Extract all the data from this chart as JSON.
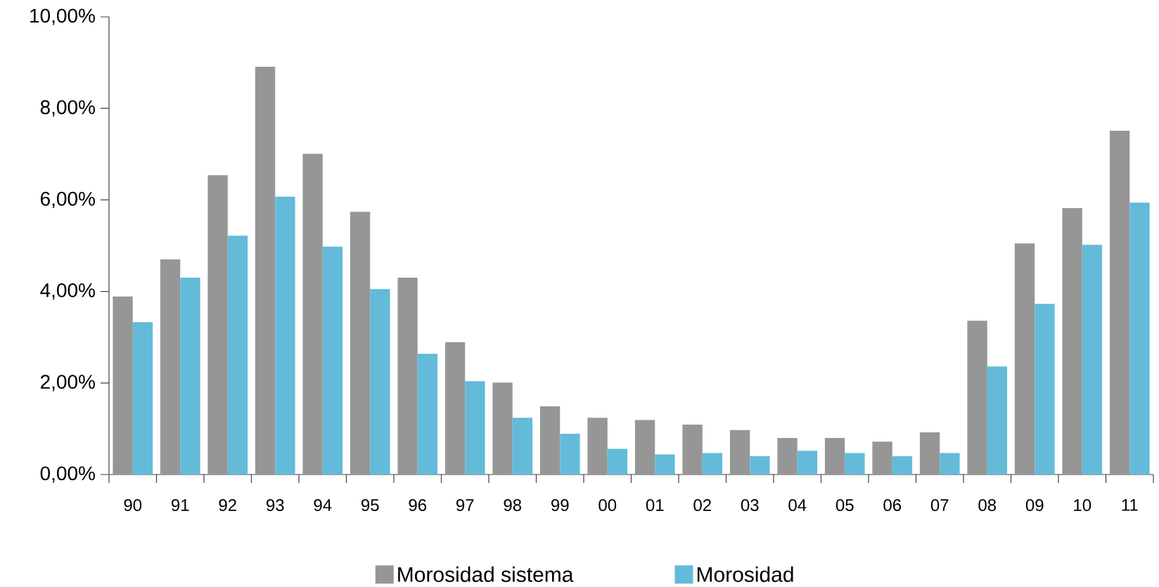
{
  "chart_data": {
    "type": "bar",
    "categories": [
      "90",
      "91",
      "92",
      "93",
      "94",
      "95",
      "96",
      "97",
      "98",
      "99",
      "00",
      "01",
      "02",
      "03",
      "04",
      "05",
      "06",
      "07",
      "08",
      "09",
      "10",
      "11"
    ],
    "series": [
      {
        "name": "Morosidad sistema",
        "color": "#969696",
        "values": [
          3.89,
          4.7,
          6.54,
          8.91,
          7.01,
          5.74,
          4.3,
          2.89,
          2.01,
          1.49,
          1.24,
          1.19,
          1.09,
          0.97,
          0.8,
          0.8,
          0.72,
          0.92,
          3.36,
          5.05,
          5.82,
          7.51
        ]
      },
      {
        "name": "Morosidad",
        "color": "#63bbd9",
        "values": [
          3.33,
          4.3,
          5.22,
          6.07,
          4.98,
          4.05,
          2.64,
          2.04,
          1.24,
          0.89,
          0.56,
          0.44,
          0.47,
          0.4,
          0.52,
          0.47,
          0.4,
          0.47,
          2.36,
          3.73,
          5.02,
          5.94
        ]
      }
    ],
    "ylim": [
      0,
      10
    ],
    "yticks": [
      {
        "value": 0,
        "label": "0,00%"
      },
      {
        "value": 2,
        "label": "2,00%"
      },
      {
        "value": 4,
        "label": "4,00%"
      },
      {
        "value": 6,
        "label": "6,00%"
      },
      {
        "value": 8,
        "label": "8,00%"
      },
      {
        "value": 10,
        "label": "10,00%"
      }
    ],
    "grid": false,
    "legend": "bottom"
  }
}
